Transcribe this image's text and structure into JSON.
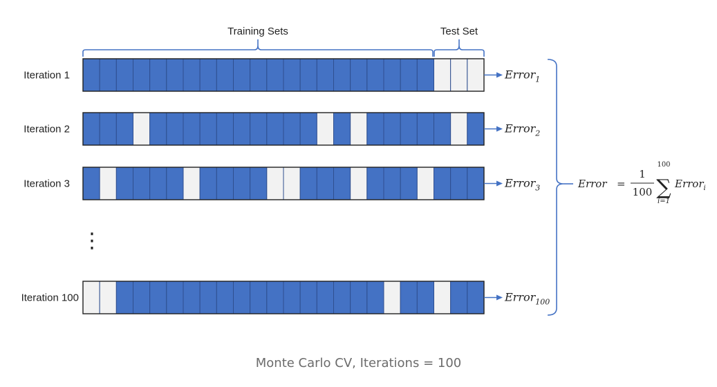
{
  "headers": {
    "training": "Training Sets",
    "test": "Test Set"
  },
  "iterations": [
    {
      "label": "Iteration 1",
      "error_base": "Error",
      "error_sub": "1",
      "cells": [
        "T",
        "T",
        "T",
        "T",
        "T",
        "T",
        "T",
        "T",
        "T",
        "T",
        "T",
        "T",
        "T",
        "T",
        "T",
        "T",
        "T",
        "T",
        "T",
        "T",
        "T",
        "V",
        "V",
        "V"
      ]
    },
    {
      "label": "Iteration 2",
      "error_base": "Error",
      "error_sub": "2",
      "cells": [
        "T",
        "T",
        "T",
        "V",
        "T",
        "T",
        "T",
        "T",
        "T",
        "T",
        "T",
        "T",
        "T",
        "T",
        "V",
        "T",
        "V",
        "T",
        "T",
        "T",
        "T",
        "T",
        "V",
        "T"
      ]
    },
    {
      "label": "Iteration 3",
      "error_base": "Error",
      "error_sub": "3",
      "cells": [
        "T",
        "V",
        "T",
        "T",
        "T",
        "T",
        "V",
        "T",
        "T",
        "T",
        "T",
        "V",
        "V",
        "T",
        "T",
        "T",
        "V",
        "T",
        "T",
        "T",
        "V",
        "T",
        "T",
        "T"
      ]
    },
    {
      "label": "Iteration 100",
      "error_base": "Error",
      "error_sub": "100",
      "cells": [
        "V",
        "V",
        "T",
        "T",
        "T",
        "T",
        "T",
        "T",
        "T",
        "T",
        "T",
        "T",
        "T",
        "T",
        "T",
        "T",
        "T",
        "T",
        "V",
        "T",
        "T",
        "V",
        "T",
        "T"
      ]
    }
  ],
  "ellipsis": "⋮",
  "formula": {
    "lhs": "Error",
    "equals": "=",
    "numerator": "1",
    "denominator": "100",
    "sum_symbol": "∑",
    "upper": "100",
    "lower": "i=1",
    "term_base": "Error",
    "term_sub": "i"
  },
  "caption": "Monte Carlo CV, Iterations = 100",
  "colors": {
    "train_fill": "#4472c4",
    "test_fill": "#f2f2f2",
    "cell_stroke": "#2f4f8f",
    "row_border": "#1f1f1f",
    "arrow": "#4472c4",
    "brace": "#4472c4"
  }
}
